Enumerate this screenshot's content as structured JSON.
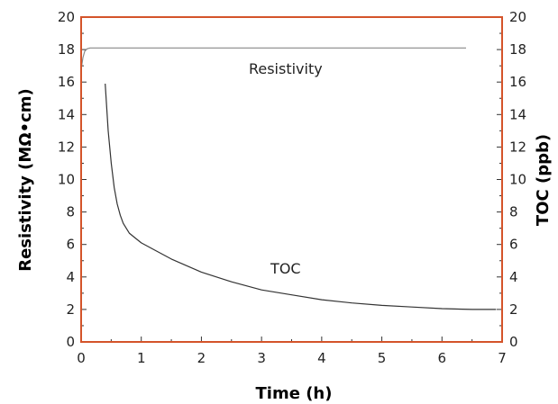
{
  "chart_data": {
    "type": "line",
    "xlabel": "Time (h)",
    "ylabel_left": "Resistivity (MΩ•cm)",
    "ylabel_right": "TOC (ppb)",
    "xlim": [
      0,
      7
    ],
    "ylim_left": [
      0,
      20
    ],
    "ylim_right": [
      0,
      20
    ],
    "x_ticks": [
      "0",
      "1",
      "2",
      "3",
      "4",
      "5",
      "6",
      "7"
    ],
    "y_ticks_left": [
      "0",
      "2",
      "4",
      "6",
      "8",
      "10",
      "12",
      "14",
      "16",
      "18",
      "20"
    ],
    "y_ticks_right": [
      "0",
      "2",
      "4",
      "6",
      "8",
      "10",
      "12",
      "14",
      "16",
      "18",
      "20"
    ],
    "frame_color": "#d4542a",
    "series": [
      {
        "name": "Resistivity",
        "axis": "left",
        "color": "#888888",
        "x": [
          0.0,
          0.03,
          0.06,
          0.1,
          0.15,
          0.2,
          0.5,
          1.0,
          2.0,
          3.0,
          4.0,
          5.0,
          6.0,
          6.4
        ],
        "y": [
          16.8,
          17.5,
          17.9,
          18.05,
          18.1,
          18.1,
          18.1,
          18.1,
          18.1,
          18.1,
          18.1,
          18.1,
          18.1,
          18.1
        ]
      },
      {
        "name": "TOC",
        "axis": "right",
        "color": "#333333",
        "x": [
          0.4,
          0.45,
          0.5,
          0.55,
          0.6,
          0.65,
          0.7,
          0.8,
          0.9,
          1.0,
          1.2,
          1.5,
          2.0,
          2.5,
          3.0,
          3.5,
          4.0,
          4.5,
          5.0,
          5.5,
          6.0,
          6.5,
          6.9
        ],
        "y": [
          15.9,
          13.0,
          11.0,
          9.5,
          8.5,
          7.8,
          7.3,
          6.7,
          6.4,
          6.1,
          5.7,
          5.1,
          4.3,
          3.7,
          3.2,
          2.9,
          2.6,
          2.4,
          2.25,
          2.15,
          2.05,
          2.0,
          2.0
        ]
      }
    ],
    "annotations": [
      {
        "text": "Resistivity",
        "x": 3.4,
        "y": 16.5
      },
      {
        "text": "TOC",
        "x": 3.4,
        "y": 4.2
      }
    ]
  }
}
